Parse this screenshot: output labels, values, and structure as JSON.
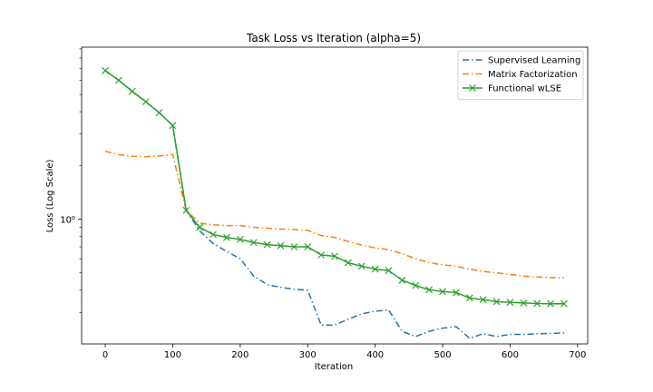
{
  "chart_data": {
    "type": "line",
    "title": "Task Loss vs Iteration (alpha=5)",
    "xlabel": "Iteration",
    "ylabel": "Loss (Log Scale)",
    "yscale": "log",
    "xlim": [
      -35,
      715
    ],
    "ylim": [
      0.2,
      9.2
    ],
    "x_ticks": [
      0,
      100,
      200,
      300,
      400,
      500,
      600,
      700
    ],
    "x_tick_labels": [
      "0",
      "100",
      "200",
      "300",
      "400",
      "500",
      "600",
      "700"
    ],
    "y_major_ticks": [
      1
    ],
    "y_tick_labels": [
      "10⁰"
    ],
    "y_minor_ticks": [
      0.3,
      0.4,
      0.5,
      0.6,
      0.7,
      0.8,
      0.9,
      2,
      3,
      4,
      5,
      6,
      7,
      8,
      9
    ],
    "grid": false,
    "legend_position": "top-right",
    "x": [
      0,
      20,
      40,
      60,
      80,
      100,
      120,
      140,
      160,
      180,
      200,
      220,
      240,
      260,
      280,
      300,
      320,
      340,
      360,
      380,
      400,
      420,
      440,
      460,
      480,
      500,
      520,
      540,
      560,
      580,
      600,
      620,
      640,
      660,
      680
    ],
    "series": [
      {
        "name": "Supervised Learning",
        "color": "#1f77b4",
        "dash": "dashdot",
        "marker": "none",
        "values": [
          6.8,
          6.0,
          5.2,
          4.55,
          3.95,
          3.35,
          1.12,
          0.86,
          0.73,
          0.66,
          0.6,
          0.48,
          0.43,
          0.415,
          0.405,
          0.4,
          0.255,
          0.255,
          0.275,
          0.295,
          0.305,
          0.31,
          0.235,
          0.22,
          0.235,
          0.245,
          0.25,
          0.215,
          0.228,
          0.22,
          0.226,
          0.226,
          0.228,
          0.229,
          0.23
        ]
      },
      {
        "name": "Matrix Factorization",
        "color": "#ff7f0e",
        "dash": "dashdot",
        "marker": "none",
        "values": [
          2.4,
          2.3,
          2.25,
          2.24,
          2.26,
          2.3,
          1.12,
          0.95,
          0.93,
          0.92,
          0.92,
          0.9,
          0.89,
          0.88,
          0.875,
          0.865,
          0.81,
          0.79,
          0.75,
          0.715,
          0.69,
          0.675,
          0.64,
          0.6,
          0.57,
          0.555,
          0.545,
          0.525,
          0.51,
          0.5,
          0.49,
          0.48,
          0.475,
          0.47,
          0.47
        ]
      },
      {
        "name": "Functional wLSE",
        "color": "#2ca02c",
        "dash": "solid",
        "marker": "x",
        "values": [
          6.8,
          6.0,
          5.2,
          4.55,
          3.95,
          3.35,
          1.12,
          0.9,
          0.82,
          0.79,
          0.77,
          0.74,
          0.72,
          0.71,
          0.7,
          0.7,
          0.63,
          0.62,
          0.57,
          0.545,
          0.525,
          0.515,
          0.455,
          0.425,
          0.402,
          0.393,
          0.388,
          0.362,
          0.354,
          0.345,
          0.342,
          0.339,
          0.337,
          0.336,
          0.336
        ]
      }
    ]
  }
}
